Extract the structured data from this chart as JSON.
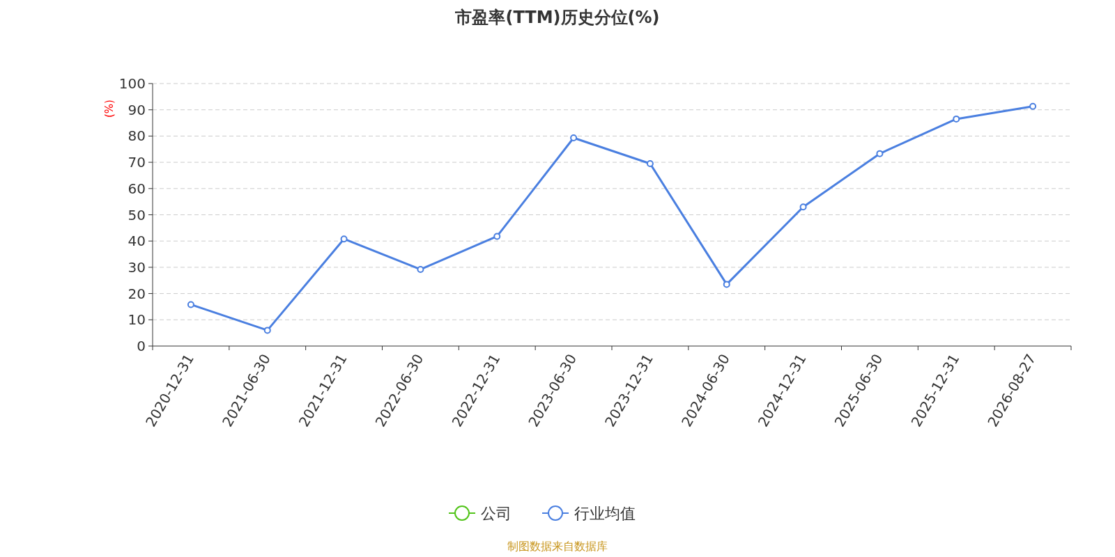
{
  "chart_data": {
    "type": "line",
    "title": "市盈率(TTM)历史分位(%)",
    "ylabel": "(%)",
    "categories": [
      "2020-12-31",
      "2021-06-30",
      "2021-12-31",
      "2022-06-30",
      "2022-12-31",
      "2023-06-30",
      "2023-12-31",
      "2024-06-30",
      "2024-12-31",
      "2025-06-30",
      "2025-12-31",
      "2026-08-27"
    ],
    "series": [
      {
        "name": "公司",
        "color": "#52c41a",
        "values": [
          null,
          null,
          null,
          null,
          null,
          null,
          null,
          null,
          null,
          null,
          null,
          null
        ]
      },
      {
        "name": "行业均值",
        "color": "#4a7fe0",
        "values": [
          15.8,
          6,
          40.8,
          29.2,
          41.8,
          79.3,
          69.5,
          23.5,
          53,
          73.3,
          86.5,
          91.3
        ]
      }
    ],
    "ylim": [
      0,
      100
    ],
    "yticks": [
      0,
      10,
      20,
      30,
      40,
      50,
      60,
      70,
      80,
      90,
      100
    ],
    "grid": "y",
    "legend": "bottom",
    "marker": "circle",
    "annotations": [
      "制图数据来自数据库"
    ]
  }
}
